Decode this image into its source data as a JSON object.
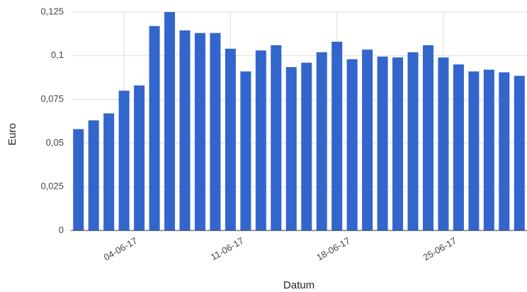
{
  "chart_data": {
    "type": "bar",
    "x_label": "Datum",
    "y_label": "Euro",
    "categories": [
      null,
      null,
      null,
      "04-06-17",
      null,
      null,
      null,
      null,
      null,
      null,
      "11-06-17",
      null,
      null,
      null,
      null,
      null,
      null,
      "18-06-17",
      null,
      null,
      null,
      null,
      null,
      null,
      "25-06-17",
      null,
      null,
      null,
      null,
      null
    ],
    "values": [
      0.058,
      0.063,
      0.067,
      0.08,
      0.083,
      0.117,
      0.125,
      0.1145,
      0.113,
      0.113,
      0.104,
      0.091,
      0.103,
      0.106,
      0.0935,
      0.096,
      0.102,
      0.108,
      0.098,
      0.1035,
      0.0995,
      0.099,
      0.102,
      0.106,
      0.099,
      0.095,
      0.091,
      0.092,
      0.0905,
      0.0885
    ],
    "color": "#3366cc",
    "ylim": [
      0,
      0.125
    ],
    "yticks": [
      0,
      {
        "value": 0.025,
        "label": "0,025"
      },
      {
        "value": 0.05,
        "label": "0,05"
      },
      {
        "value": 0.075,
        "label": "0,075"
      },
      {
        "value": 0.1,
        "label": "0,1"
      },
      {
        "value": 0.125,
        "label": "0,125"
      }
    ],
    "grid": true
  }
}
